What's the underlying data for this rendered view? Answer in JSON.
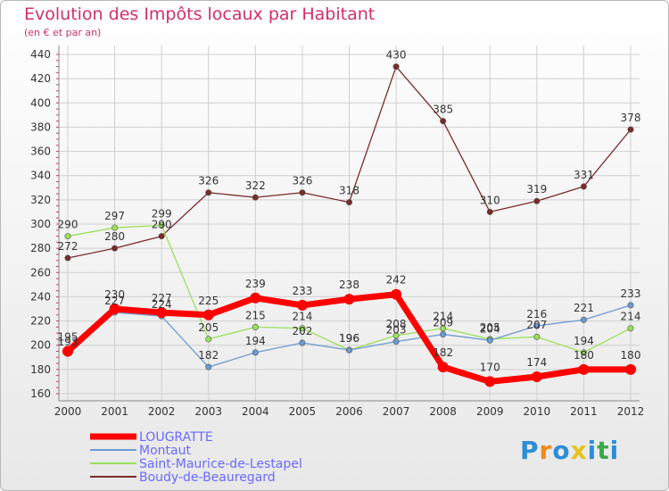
{
  "chart_data": {
    "type": "line",
    "title": "Evolution des Impôts locaux par Habitant",
    "subtitle": "(en € et par an)",
    "xlabel": "",
    "ylabel": "",
    "categories": [
      "2000",
      "2001",
      "2002",
      "2003",
      "2004",
      "2005",
      "2006",
      "2007",
      "2008",
      "2009",
      "2010",
      "2011",
      "2012"
    ],
    "ylim": [
      160,
      440
    ],
    "yticks": [
      160,
      180,
      200,
      220,
      240,
      260,
      280,
      300,
      320,
      340,
      360,
      380,
      400,
      420,
      440
    ],
    "grid": true,
    "legend_position": "bottom-left",
    "series": [
      {
        "name": "LOUGRATTE",
        "color": "#ff0000",
        "values": [
          195,
          230,
          227,
          225,
          239,
          233,
          238,
          242,
          182,
          170,
          174,
          180,
          180
        ]
      },
      {
        "name": "Montaut",
        "color": "#6b9bd1",
        "values": [
          193,
          227,
          224,
          182,
          194,
          202,
          196,
          203,
          209,
          204,
          216,
          221,
          233
        ]
      },
      {
        "name": "Saint-Maurice-de-Lestapel",
        "color": "#99e05a",
        "values": [
          290,
          297,
          299,
          205,
          215,
          214,
          196,
          208,
          214,
          205,
          207,
          194,
          214
        ]
      },
      {
        "name": "Boudy-de-Beauregard",
        "color": "#7a2a2a",
        "values": [
          272,
          280,
          290,
          326,
          322,
          326,
          318,
          430,
          385,
          310,
          319,
          331,
          378
        ]
      }
    ]
  },
  "logo": {
    "text": "Proxiti",
    "letters": [
      "P",
      "r",
      "o",
      "x",
      "i",
      "t",
      "i"
    ],
    "colors": [
      "#2a8fd6",
      "#f08a1c",
      "#2a8fd6",
      "#e8c31c",
      "#2a8fd6",
      "#3aa84a",
      "#2a8fd6"
    ]
  }
}
